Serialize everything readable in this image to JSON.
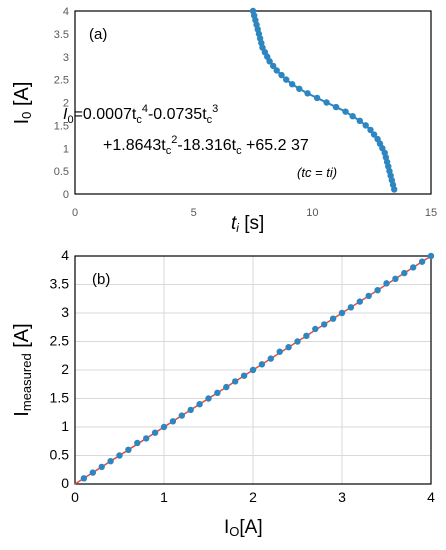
{
  "chart_data": [
    {
      "panel": "(a)",
      "type": "scatter",
      "line": true,
      "xlabel": "t",
      "xlabel_sub": "i",
      "xlabel_unit": " [s]",
      "ylabel": "I",
      "ylabel_sub": "0",
      "ylabel_unit": " [A]",
      "xlim": [
        0,
        15
      ],
      "ylim": [
        0,
        4
      ],
      "xticks": [
        "0",
        "5",
        "10",
        "15"
      ],
      "yticks": [
        "0",
        "0.5",
        "1",
        "1.5",
        "2",
        "2.5",
        "3",
        "3.5",
        "4"
      ],
      "grid": false,
      "color": "#2e86c1",
      "equation_line1_parts": [
        "I",
        "0",
        "=0.0007t",
        "c",
        "4",
        "-0.0735t",
        "c",
        "3"
      ],
      "equation_line2_parts": [
        "+1.8643t",
        "c",
        "2",
        "-18.316t",
        "c",
        " +65.2 37"
      ],
      "equation_note": "(tc = ti)",
      "points": [
        [
          7.5,
          4.0
        ],
        [
          7.55,
          3.9
        ],
        [
          7.6,
          3.8
        ],
        [
          7.65,
          3.7
        ],
        [
          7.7,
          3.6
        ],
        [
          7.75,
          3.5
        ],
        [
          7.8,
          3.4
        ],
        [
          7.85,
          3.3
        ],
        [
          7.9,
          3.2
        ],
        [
          8.0,
          3.1
        ],
        [
          8.1,
          3.0
        ],
        [
          8.2,
          2.9
        ],
        [
          8.35,
          2.8
        ],
        [
          8.5,
          2.7
        ],
        [
          8.7,
          2.6
        ],
        [
          8.9,
          2.5
        ],
        [
          9.15,
          2.4
        ],
        [
          9.45,
          2.3
        ],
        [
          9.8,
          2.2
        ],
        [
          10.2,
          2.1
        ],
        [
          10.6,
          2.0
        ],
        [
          11.0,
          1.9
        ],
        [
          11.4,
          1.8
        ],
        [
          11.7,
          1.7
        ],
        [
          12.0,
          1.6
        ],
        [
          12.25,
          1.5
        ],
        [
          12.45,
          1.4
        ],
        [
          12.6,
          1.3
        ],
        [
          12.75,
          1.2
        ],
        [
          12.85,
          1.1
        ],
        [
          12.95,
          1.0
        ],
        [
          13.05,
          0.9
        ],
        [
          13.1,
          0.8
        ],
        [
          13.15,
          0.7
        ],
        [
          13.2,
          0.6
        ],
        [
          13.25,
          0.5
        ],
        [
          13.3,
          0.4
        ],
        [
          13.35,
          0.3
        ],
        [
          13.4,
          0.2
        ],
        [
          13.45,
          0.1
        ]
      ]
    },
    {
      "panel": "(b)",
      "type": "scatter",
      "xlabel": "I",
      "xlabel_sub": "O",
      "xlabel_unit": "[A]",
      "ylabel": "I",
      "ylabel_sub": "measured",
      "ylabel_unit": " [A]",
      "xlim": [
        0,
        4
      ],
      "ylim": [
        0,
        4
      ],
      "xticks": [
        "0",
        "1",
        "2",
        "3",
        "4"
      ],
      "yticks": [
        "0",
        "0.5",
        "1",
        "1.5",
        "2",
        "2.5",
        "3",
        "3.5",
        "4"
      ],
      "grid": true,
      "color": "#2e86c1",
      "fit_color": "#e74c3c",
      "fit_line": [
        [
          0,
          0
        ],
        [
          4,
          4
        ]
      ],
      "points": [
        [
          0.1,
          0.1
        ],
        [
          0.2,
          0.2
        ],
        [
          0.3,
          0.3
        ],
        [
          0.4,
          0.4
        ],
        [
          0.5,
          0.5
        ],
        [
          0.6,
          0.6
        ],
        [
          0.7,
          0.72
        ],
        [
          0.8,
          0.8
        ],
        [
          0.9,
          0.9
        ],
        [
          1.0,
          1.0
        ],
        [
          1.1,
          1.1
        ],
        [
          1.2,
          1.2
        ],
        [
          1.3,
          1.3
        ],
        [
          1.4,
          1.4
        ],
        [
          1.5,
          1.5
        ],
        [
          1.6,
          1.6
        ],
        [
          1.7,
          1.7
        ],
        [
          1.8,
          1.8
        ],
        [
          1.9,
          1.9
        ],
        [
          2.0,
          2.0
        ],
        [
          2.1,
          2.1
        ],
        [
          2.2,
          2.2
        ],
        [
          2.3,
          2.32
        ],
        [
          2.4,
          2.4
        ],
        [
          2.5,
          2.5
        ],
        [
          2.6,
          2.6
        ],
        [
          2.7,
          2.72
        ],
        [
          2.8,
          2.8
        ],
        [
          2.9,
          2.9
        ],
        [
          3.0,
          3.0
        ],
        [
          3.1,
          3.1
        ],
        [
          3.2,
          3.2
        ],
        [
          3.3,
          3.3
        ],
        [
          3.4,
          3.4
        ],
        [
          3.5,
          3.52
        ],
        [
          3.6,
          3.6
        ],
        [
          3.7,
          3.7
        ],
        [
          3.8,
          3.8
        ],
        [
          3.9,
          3.9
        ],
        [
          4.0,
          4.0
        ]
      ]
    }
  ]
}
